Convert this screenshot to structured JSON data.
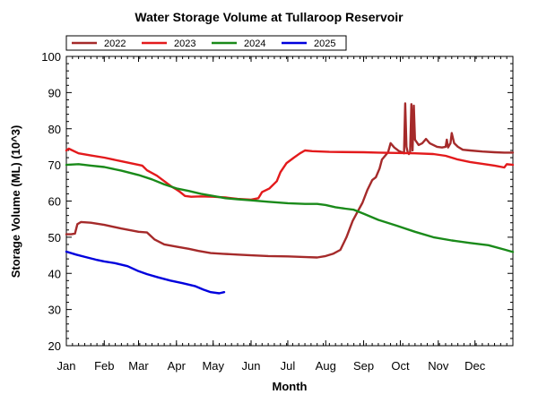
{
  "chart_data": {
    "type": "line",
    "title": "Water Storage Volume at Tullaroop Reservoir",
    "xlabel": "Month",
    "ylabel": "Storage Volume (ML) (10^3)",
    "ylim": [
      20,
      100
    ],
    "yticks": [
      20,
      30,
      40,
      50,
      60,
      70,
      80,
      90,
      100
    ],
    "xlim": [
      0,
      365
    ],
    "xtick_labels": [
      "Jan",
      "Feb",
      "Mar",
      "Apr",
      "May",
      "Jun",
      "Jul",
      "Aug",
      "Sep",
      "Oct",
      "Nov",
      "Dec"
    ],
    "xtick_days": [
      0,
      31,
      59,
      90,
      120,
      151,
      181,
      212,
      243,
      273,
      304,
      334
    ],
    "grid": false,
    "legend_position": "top-left",
    "series": [
      {
        "name": "2022",
        "color": "#a52a2a",
        "points": [
          [
            0,
            50.8
          ],
          [
            4,
            50.8
          ],
          [
            7,
            51
          ],
          [
            9,
            53.6
          ],
          [
            12,
            54.2
          ],
          [
            20,
            54
          ],
          [
            31,
            53.4
          ],
          [
            45,
            52.4
          ],
          [
            59,
            51.5
          ],
          [
            66,
            51.3
          ],
          [
            72,
            49.4
          ],
          [
            80,
            48
          ],
          [
            90,
            47.4
          ],
          [
            100,
            46.8
          ],
          [
            108,
            46.2
          ],
          [
            118,
            45.6
          ],
          [
            128,
            45.4
          ],
          [
            140,
            45.2
          ],
          [
            151,
            45
          ],
          [
            165,
            44.8
          ],
          [
            181,
            44.7
          ],
          [
            196,
            44.5
          ],
          [
            205,
            44.4
          ],
          [
            212,
            44.8
          ],
          [
            218,
            45.4
          ],
          [
            224,
            46.5
          ],
          [
            229,
            50
          ],
          [
            234,
            54.5
          ],
          [
            238,
            57
          ],
          [
            242,
            59.5
          ],
          [
            246,
            63
          ],
          [
            250,
            65.8
          ],
          [
            253,
            66.6
          ],
          [
            256,
            69
          ],
          [
            258,
            71.5
          ],
          [
            263,
            73.5
          ],
          [
            265,
            76
          ],
          [
            268,
            74.8
          ],
          [
            272,
            73.8
          ],
          [
            275,
            73.4
          ],
          [
            276,
            73.2
          ],
          [
            277,
            87
          ],
          [
            278,
            75
          ],
          [
            279,
            73.5
          ],
          [
            280,
            73
          ],
          [
            281,
            73.5
          ],
          [
            282,
            86.8
          ],
          [
            283,
            74
          ],
          [
            284,
            86.4
          ],
          [
            285,
            77
          ],
          [
            288,
            75.5
          ],
          [
            291,
            76
          ],
          [
            294,
            77.2
          ],
          [
            297,
            76
          ],
          [
            300,
            75.5
          ],
          [
            303,
            75
          ],
          [
            307,
            74.8
          ],
          [
            310,
            75
          ],
          [
            311,
            77
          ],
          [
            312,
            74.8
          ],
          [
            314,
            76
          ],
          [
            315,
            78.8
          ],
          [
            317,
            76
          ],
          [
            320,
            75
          ],
          [
            324,
            74.2
          ],
          [
            330,
            74
          ],
          [
            340,
            73.7
          ],
          [
            350,
            73.5
          ],
          [
            358,
            73.4
          ],
          [
            365,
            73.4
          ]
        ]
      },
      {
        "name": "2023",
        "color": "#e31a1c",
        "points": [
          [
            0,
            74
          ],
          [
            2,
            74.5
          ],
          [
            10,
            73.2
          ],
          [
            20,
            72.6
          ],
          [
            31,
            72
          ],
          [
            45,
            71
          ],
          [
            59,
            70
          ],
          [
            62,
            69.8
          ],
          [
            66,
            68.5
          ],
          [
            74,
            67
          ],
          [
            80,
            65.5
          ],
          [
            86,
            64
          ],
          [
            90,
            63.2
          ],
          [
            93,
            62.5
          ],
          [
            97,
            61.4
          ],
          [
            102,
            61.2
          ],
          [
            110,
            61.3
          ],
          [
            120,
            61.2
          ],
          [
            130,
            61
          ],
          [
            140,
            60.6
          ],
          [
            151,
            60.4
          ],
          [
            157,
            60.8
          ],
          [
            160,
            62.5
          ],
          [
            166,
            63.5
          ],
          [
            172,
            65.5
          ],
          [
            175,
            68
          ],
          [
            180,
            70.5
          ],
          [
            186,
            72
          ],
          [
            191,
            73.2
          ],
          [
            195,
            74
          ],
          [
            201,
            73.8
          ],
          [
            215,
            73.6
          ],
          [
            243,
            73.5
          ],
          [
            255,
            73.4
          ],
          [
            270,
            73.3
          ],
          [
            285,
            73.2
          ],
          [
            300,
            73
          ],
          [
            310,
            72.5
          ],
          [
            320,
            71.5
          ],
          [
            330,
            70.8
          ],
          [
            340,
            70.3
          ],
          [
            350,
            69.8
          ],
          [
            358,
            69.3
          ],
          [
            360,
            70.2
          ],
          [
            365,
            70
          ]
        ]
      },
      {
        "name": "2024",
        "color": "#1a8a1a",
        "points": [
          [
            0,
            70
          ],
          [
            10,
            70.2
          ],
          [
            20,
            69.8
          ],
          [
            31,
            69.4
          ],
          [
            45,
            68.4
          ],
          [
            59,
            67.2
          ],
          [
            70,
            66
          ],
          [
            80,
            64.6
          ],
          [
            90,
            63.5
          ],
          [
            100,
            62.8
          ],
          [
            110,
            62
          ],
          [
            120,
            61.4
          ],
          [
            130,
            60.8
          ],
          [
            140,
            60.5
          ],
          [
            151,
            60.2
          ],
          [
            165,
            59.8
          ],
          [
            181,
            59.4
          ],
          [
            195,
            59.2
          ],
          [
            205,
            59.2
          ],
          [
            212,
            58.9
          ],
          [
            220,
            58.3
          ],
          [
            228,
            57.9
          ],
          [
            235,
            57.6
          ],
          [
            243,
            56.5
          ],
          [
            255,
            54.8
          ],
          [
            270,
            53.2
          ],
          [
            285,
            51.5
          ],
          [
            300,
            50
          ],
          [
            315,
            49.1
          ],
          [
            330,
            48.4
          ],
          [
            345,
            47.8
          ],
          [
            358,
            46.6
          ],
          [
            365,
            45.9
          ]
        ]
      },
      {
        "name": "2025",
        "color": "#0000dd",
        "points": [
          [
            0,
            46
          ],
          [
            8,
            45.2
          ],
          [
            16,
            44.5
          ],
          [
            24,
            43.8
          ],
          [
            31,
            43.3
          ],
          [
            40,
            42.8
          ],
          [
            50,
            42
          ],
          [
            59,
            40.6
          ],
          [
            66,
            39.8
          ],
          [
            75,
            38.9
          ],
          [
            85,
            38
          ],
          [
            95,
            37.3
          ],
          [
            105,
            36.5
          ],
          [
            112,
            35.5
          ],
          [
            118,
            34.8
          ],
          [
            125,
            34.5
          ],
          [
            129,
            34.8
          ]
        ]
      }
    ]
  }
}
